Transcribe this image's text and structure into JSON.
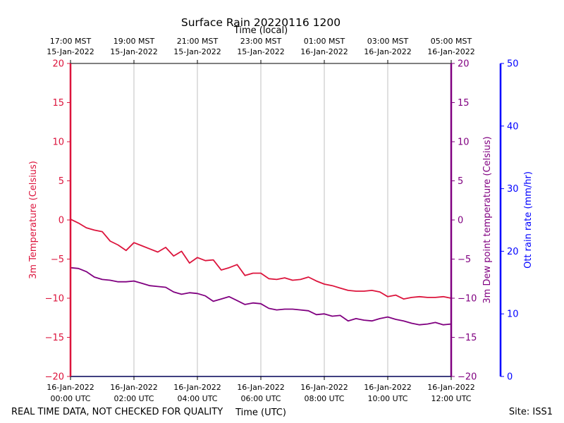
{
  "chart_data": {
    "type": "line",
    "title": "Surface Rain 20220116 1200",
    "top_xlabel": "Time (local)",
    "xlabel": "Time (UTC)",
    "ylabel_left": "3m Temperature (Celsius)",
    "ylabel_right1": "3m Dew point temperature (Celsius)",
    "ylabel_right2": "Ott rain rate (mm/hr)",
    "footer_left": "REAL TIME DATA, NOT CHECKED FOR QUALITY",
    "footer_right": "Site: ISS1",
    "xlim_hours": [
      0,
      12
    ],
    "temp_ylim": [
      -20,
      20
    ],
    "dew_ylim": [
      -20,
      20
    ],
    "rain_ylim": [
      0,
      50
    ],
    "temp_ticks": [
      "20",
      "15",
      "10",
      "5",
      "0",
      "−5",
      "−10",
      "−15",
      "−20"
    ],
    "temp_tick_values": [
      20,
      15,
      10,
      5,
      0,
      -5,
      -10,
      -15,
      -20
    ],
    "dew_ticks": [
      "20",
      "15",
      "10",
      "5",
      "0",
      "−5",
      "−10",
      "−15",
      "−20"
    ],
    "dew_tick_values": [
      20,
      15,
      10,
      5,
      0,
      -5,
      -10,
      -15,
      -20
    ],
    "rain_ticks": [
      "50",
      "40",
      "30",
      "20",
      "10",
      "0"
    ],
    "rain_tick_values": [
      50,
      40,
      30,
      20,
      10,
      0
    ],
    "bottom_ticks": [
      {
        "hour": 0,
        "line1": "16-Jan-2022",
        "line2": "00:00 UTC"
      },
      {
        "hour": 2,
        "line1": "16-Jan-2022",
        "line2": "02:00 UTC"
      },
      {
        "hour": 4,
        "line1": "16-Jan-2022",
        "line2": "04:00 UTC"
      },
      {
        "hour": 6,
        "line1": "16-Jan-2022",
        "line2": "06:00 UTC"
      },
      {
        "hour": 8,
        "line1": "16-Jan-2022",
        "line2": "08:00 UTC"
      },
      {
        "hour": 10,
        "line1": "16-Jan-2022",
        "line2": "10:00 UTC"
      },
      {
        "hour": 12,
        "line1": "16-Jan-2022",
        "line2": "12:00 UTC"
      }
    ],
    "top_ticks": [
      {
        "hour": 0,
        "line1": "17:00 MST",
        "line2": "15-Jan-2022"
      },
      {
        "hour": 2,
        "line1": "19:00 MST",
        "line2": "15-Jan-2022"
      },
      {
        "hour": 4,
        "line1": "21:00 MST",
        "line2": "15-Jan-2022"
      },
      {
        "hour": 6,
        "line1": "23:00 MST",
        "line2": "15-Jan-2022"
      },
      {
        "hour": 8,
        "line1": "01:00 MST",
        "line2": "16-Jan-2022"
      },
      {
        "hour": 10,
        "line1": "03:00 MST",
        "line2": "16-Jan-2022"
      },
      {
        "hour": 12,
        "line1": "05:00 MST",
        "line2": "16-Jan-2022"
      }
    ],
    "series": [
      {
        "name": "3m Temperature",
        "color": "#dc143c",
        "x": [
          0,
          0.25,
          0.5,
          0.75,
          1.0,
          1.25,
          1.5,
          1.75,
          2.0,
          2.25,
          2.5,
          2.75,
          3.0,
          3.25,
          3.5,
          3.75,
          4.0,
          4.25,
          4.5,
          4.75,
          5.0,
          5.25,
          5.5,
          5.75,
          6.0,
          6.25,
          6.5,
          6.75,
          7.0,
          7.25,
          7.5,
          7.75,
          8.0,
          8.25,
          8.5,
          8.75,
          9.0,
          9.25,
          9.5,
          9.75,
          10.0,
          10.25,
          10.5,
          10.75,
          11.0,
          11.25,
          11.5,
          11.75,
          12.0
        ],
        "values": [
          0.1,
          -0.4,
          -1.0,
          -1.3,
          -1.5,
          -2.7,
          -3.2,
          -3.9,
          -2.9,
          -3.3,
          -3.7,
          -4.1,
          -3.5,
          -4.6,
          -4.0,
          -5.5,
          -4.8,
          -5.2,
          -5.1,
          -6.4,
          -6.1,
          -5.7,
          -7.1,
          -6.8,
          -6.8,
          -7.5,
          -7.6,
          -7.4,
          -7.7,
          -7.6,
          -7.3,
          -7.8,
          -8.2,
          -8.4,
          -8.7,
          -9.0,
          -9.1,
          -9.1,
          -9.0,
          -9.2,
          -9.8,
          -9.6,
          -10.1,
          -9.9,
          -9.8,
          -9.9,
          -9.9,
          -9.8,
          -10.0
        ]
      },
      {
        "name": "3m Dew point temperature",
        "color": "#800080",
        "x": [
          0,
          0.25,
          0.5,
          0.75,
          1.0,
          1.25,
          1.5,
          1.75,
          2.0,
          2.25,
          2.5,
          2.75,
          3.0,
          3.25,
          3.5,
          3.75,
          4.0,
          4.25,
          4.5,
          4.75,
          5.0,
          5.25,
          5.5,
          5.75,
          6.0,
          6.25,
          6.5,
          6.75,
          7.0,
          7.25,
          7.5,
          7.75,
          8.0,
          8.25,
          8.5,
          8.75,
          9.0,
          9.25,
          9.5,
          9.75,
          10.0,
          10.25,
          10.5,
          10.75,
          11.0,
          11.25,
          11.5,
          11.75,
          12.0
        ],
        "values": [
          -6.1,
          -6.2,
          -6.6,
          -7.3,
          -7.6,
          -7.7,
          -7.9,
          -7.9,
          -7.8,
          -8.1,
          -8.4,
          -8.5,
          -8.6,
          -9.2,
          -9.5,
          -9.3,
          -9.4,
          -9.7,
          -10.4,
          -10.1,
          -9.8,
          -10.3,
          -10.8,
          -10.6,
          -10.7,
          -11.3,
          -11.5,
          -11.4,
          -11.4,
          -11.5,
          -11.6,
          -12.1,
          -12.0,
          -12.3,
          -12.2,
          -12.9,
          -12.6,
          -12.8,
          -12.9,
          -12.6,
          -12.4,
          -12.7,
          -12.9,
          -13.2,
          -13.4,
          -13.3,
          -13.1,
          -13.4,
          -13.3
        ]
      },
      {
        "name": "Ott rain rate",
        "color": "#0000ff",
        "x": [
          0,
          12
        ],
        "values": [
          0,
          0
        ]
      }
    ],
    "grid": true
  }
}
